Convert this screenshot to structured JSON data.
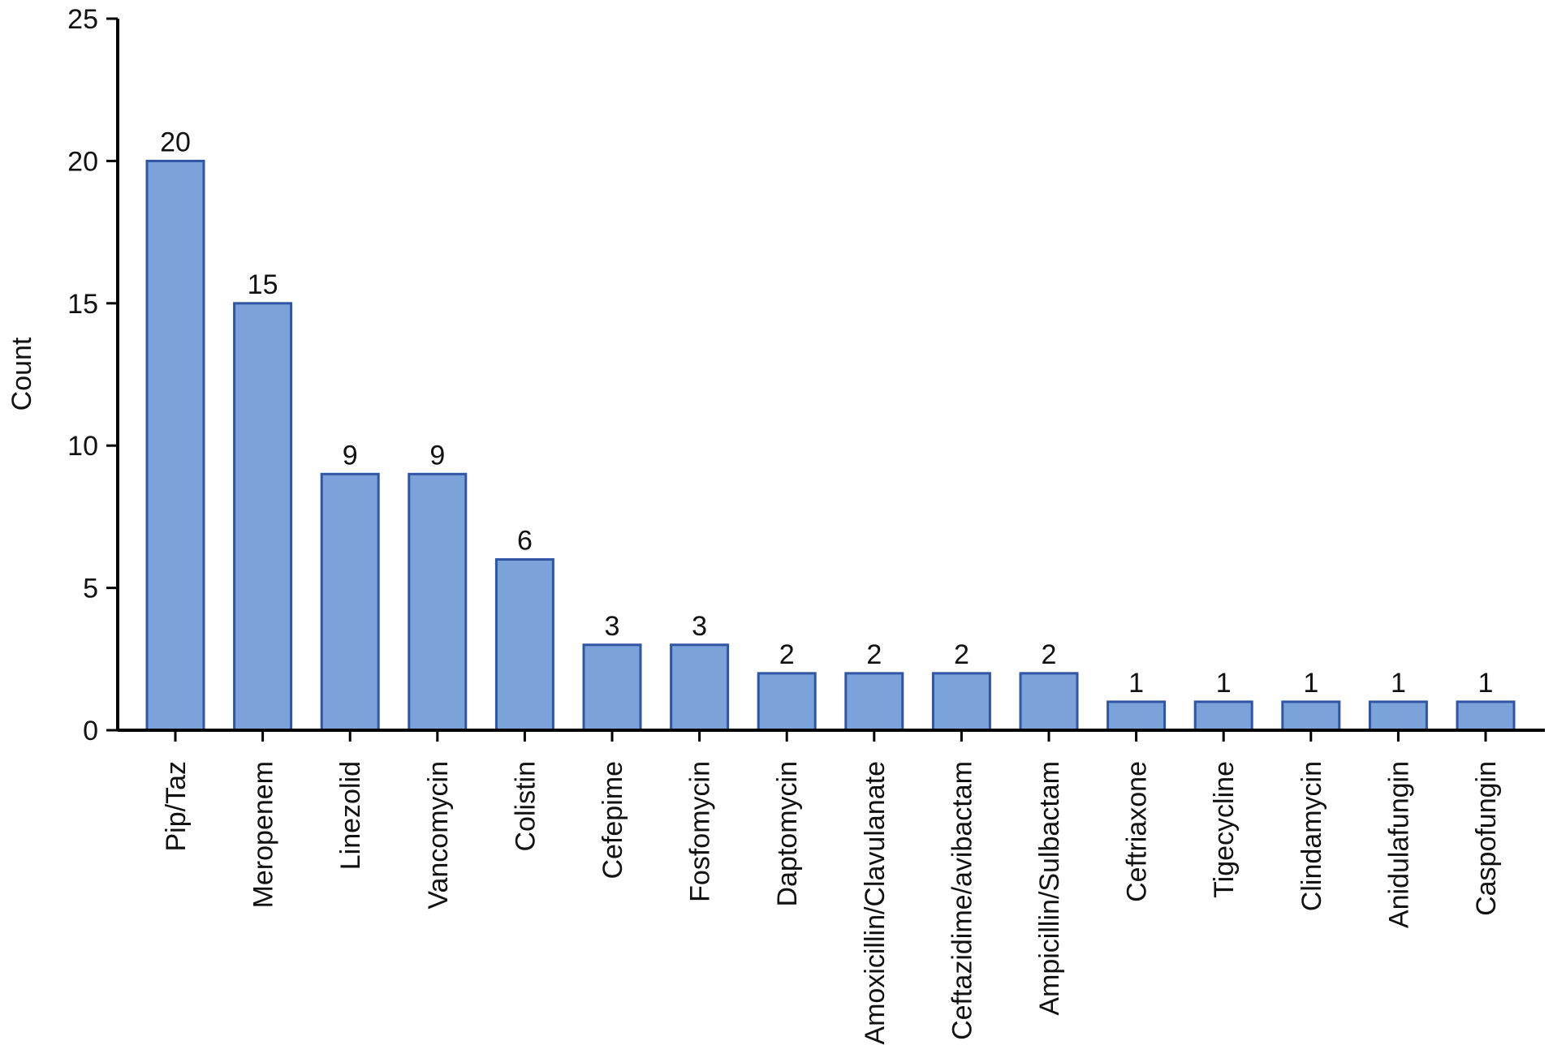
{
  "chart_data": {
    "type": "bar",
    "title": "",
    "xlabel": "",
    "ylabel": "Count",
    "ylim": [
      0,
      25
    ],
    "yticks": [
      0,
      5,
      10,
      15,
      20,
      25
    ],
    "grid": false,
    "categories": [
      "Pip/Taz",
      "Meropenem",
      "Linezolid",
      "Vancomycin",
      "Colistin",
      "Cefepime",
      "Fosfomycin",
      "Daptomycin",
      "Amoxicillin/Clavulanate",
      "Ceftazidime/avibactam",
      "Ampicillin/Sulbactam",
      "Ceftriaxone",
      "Tigecycline",
      "Clindamycin",
      "Anidulafungin",
      "Caspofungin"
    ],
    "values": [
      20,
      15,
      9,
      9,
      6,
      3,
      3,
      2,
      2,
      2,
      2,
      1,
      1,
      1,
      1,
      1
    ],
    "colors": {
      "bar_fill": "#7ba3d9",
      "bar_stroke": "#2f55a4",
      "axis": "#000000"
    }
  }
}
